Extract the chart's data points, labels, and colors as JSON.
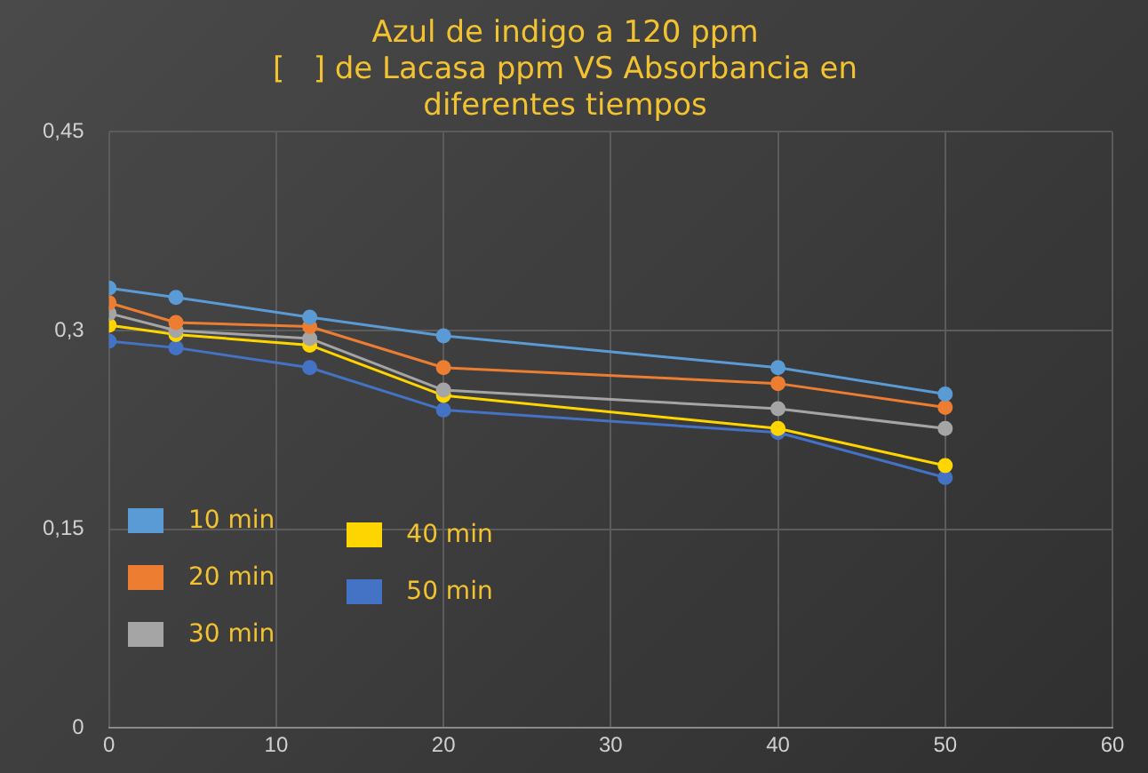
{
  "chart_data": {
    "type": "line",
    "title": "Azul de indigo a 120 ppm\n[   ] de Lacasa ppm VS Absorbancia en\ndiferentes tiempos",
    "x": [
      0,
      4,
      12,
      20,
      40,
      50
    ],
    "series": [
      {
        "name": "10 min",
        "color": "#5b9bd5",
        "values": [
          0.332,
          0.325,
          0.31,
          0.296,
          0.272,
          0.252
        ]
      },
      {
        "name": "20 min",
        "color": "#ed7d31",
        "values": [
          0.321,
          0.306,
          0.303,
          0.272,
          0.26,
          0.242
        ]
      },
      {
        "name": "30 min",
        "color": "#a5a5a5",
        "values": [
          0.313,
          0.3,
          0.294,
          0.255,
          0.241,
          0.226
        ]
      },
      {
        "name": "40  min",
        "color": "#ffd500",
        "values": [
          0.304,
          0.297,
          0.289,
          0.251,
          0.226,
          0.198
        ]
      },
      {
        "name": "50 min",
        "color": "#4472c4",
        "values": [
          0.292,
          0.287,
          0.272,
          0.24,
          0.223,
          0.189
        ]
      }
    ],
    "xlim": [
      0,
      60
    ],
    "xticks": [
      0,
      10,
      20,
      30,
      40,
      50,
      60
    ],
    "ylim": [
      0,
      0.45
    ],
    "yticks": [
      {
        "value": 0,
        "label": "0"
      },
      {
        "value": 0.15,
        "label": "0,15"
      },
      {
        "value": 0.3,
        "label": "0,3"
      },
      {
        "value": 0.45,
        "label": "0,45"
      }
    ],
    "grid": true,
    "legend": "bottom left",
    "marker": "circle",
    "line_style": "solid"
  }
}
